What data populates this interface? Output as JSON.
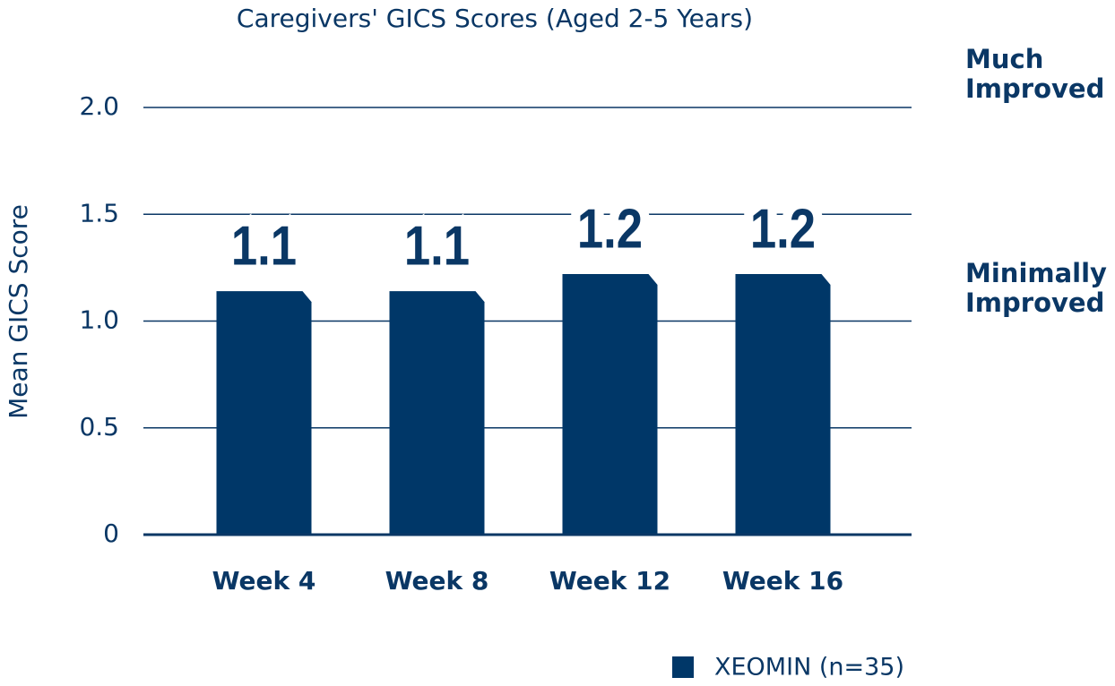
{
  "chart_data": {
    "type": "bar",
    "title": "Caregivers' GICS Scores (Aged 2-5 Years)",
    "y_label": "Mean GICS Score",
    "categories": [
      "Week 4",
      "Week 8",
      "Week 12",
      "Week 16"
    ],
    "series": [
      {
        "name": "XEOMIN (n=35)",
        "color": "#003768",
        "values": [
          1.14,
          1.14,
          1.22,
          1.22
        ],
        "value_labels": [
          "1.1",
          "1.1",
          "1.2",
          "1.2"
        ]
      }
    ],
    "ylim": [
      0,
      2
    ],
    "yticks": [
      0,
      0.5,
      {
        "value": 1,
        "label": "1.0"
      },
      1.5,
      {
        "value": 2,
        "label": "2.0"
      }
    ],
    "grid": true,
    "annotations": [
      {
        "text": "Much Improved",
        "y": 2
      },
      {
        "text": "Minimally Improved",
        "y": 1
      }
    ]
  }
}
